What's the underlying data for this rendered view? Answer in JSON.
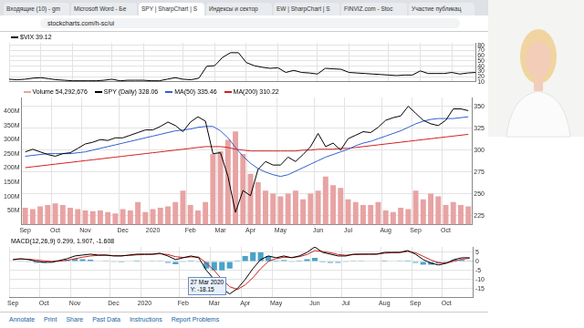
{
  "browser": {
    "tabs": [
      "Входящие (10) - gm",
      "Microsoft Word - Бе",
      "SPY | SharpChart | S",
      "Индексы и сектор",
      "EW | SharpChart | S",
      "FINVIZ.com - Stoc",
      "Участие публикац"
    ],
    "url": "stockcharts.com/h-sc/ui"
  },
  "toolbar": [
    "Annotate",
    "Print",
    "Share",
    "Past Data",
    "Instructions",
    "Report Problems"
  ],
  "chart_data": [
    {
      "type": "line",
      "tick_labels": "y",
      "grid": true,
      "categories": [
        "Sep",
        null,
        null,
        null,
        "Oct",
        null,
        null,
        null,
        "Nov",
        null,
        null,
        null,
        null,
        "Dec",
        null,
        null,
        null,
        "2020",
        null,
        null,
        null,
        null,
        "Feb",
        null,
        null,
        null,
        "Mar",
        null,
        null,
        null,
        "Apr",
        null,
        null,
        null,
        "May",
        null,
        null,
        null,
        null,
        "Jun",
        null,
        null,
        null,
        "Jul",
        null,
        null,
        null,
        null,
        "Aug",
        null,
        null,
        null,
        "Sep",
        null,
        null,
        null,
        "Oct",
        null,
        null,
        null
      ],
      "ylim": [
        10,
        85
      ],
      "yticks": [
        10,
        20,
        30,
        40,
        50,
        60,
        70,
        80
      ],
      "series": [
        {
          "name": "$VIX 39.12",
          "color": "#000000",
          "values": [
            15,
            14,
            15,
            17,
            18,
            16,
            14,
            13,
            12,
            12,
            12,
            12,
            13,
            15,
            12,
            13,
            13,
            13,
            12,
            12,
            15,
            18,
            15,
            14,
            17,
            40,
            41,
            57,
            66,
            66,
            47,
            41,
            38,
            36,
            37,
            28,
            32,
            28,
            27,
            25,
            36,
            35,
            34,
            28,
            27,
            26,
            25,
            24,
            23,
            22,
            23,
            23,
            31,
            26,
            26,
            26,
            28,
            25,
            27,
            28
          ]
        }
      ]
    },
    {
      "type": "line",
      "grid": true,
      "categories": [
        "Sep",
        null,
        null,
        null,
        "Oct",
        null,
        null,
        null,
        "Nov",
        null,
        null,
        null,
        null,
        "Dec",
        null,
        null,
        null,
        "2020",
        null,
        null,
        null,
        null,
        "Feb",
        null,
        null,
        null,
        "Mar",
        null,
        null,
        null,
        "Apr",
        null,
        null,
        null,
        "May",
        null,
        null,
        null,
        null,
        "Jun",
        null,
        null,
        null,
        "Jul",
        null,
        null,
        null,
        null,
        "Aug",
        null,
        null,
        null,
        "Sep",
        null,
        null,
        null,
        "Oct",
        null,
        null,
        null
      ],
      "ylim": [
        215,
        360
      ],
      "yticks": [
        225,
        250,
        275,
        300,
        325,
        350
      ],
      "y2lim": [
        0,
        450
      ],
      "y2ticks": [
        {
          "value": 50,
          "label": "50M"
        },
        {
          "value": 100,
          "label": "100M"
        },
        {
          "value": 150,
          "label": "150M"
        },
        {
          "value": 200,
          "label": "200M"
        },
        {
          "value": 250,
          "label": "250M"
        },
        {
          "value": 300,
          "label": "300M"
        },
        {
          "value": 350,
          "label": "350M"
        },
        {
          "value": 400,
          "label": "400M"
        }
      ],
      "series": [
        {
          "name": "Volume 54,292,676",
          "type": "bar",
          "axis": "y2",
          "color": "#e8a3a3",
          "values": [
            60,
            55,
            65,
            70,
            75,
            70,
            60,
            55,
            50,
            48,
            50,
            45,
            40,
            55,
            50,
            80,
            45,
            55,
            60,
            65,
            80,
            120,
            70,
            50,
            80,
            250,
            260,
            300,
            330,
            250,
            180,
            150,
            120,
            110,
            100,
            110,
            120,
            90,
            110,
            120,
            170,
            140,
            130,
            90,
            80,
            70,
            70,
            80,
            50,
            45,
            60,
            55,
            120,
            90,
            110,
            100,
            70,
            80,
            70,
            65
          ]
        },
        {
          "name": "SPY (Daily) 328.06",
          "color": "#000000",
          "values": [
            298,
            301,
            298,
            295,
            293,
            296,
            297,
            302,
            307,
            309,
            312,
            311,
            314,
            314,
            317,
            320,
            323,
            323,
            327,
            332,
            328,
            321,
            332,
            338,
            333,
            296,
            297,
            270,
            229,
            254,
            248,
            278,
            287,
            283,
            283,
            292,
            287,
            295,
            304,
            319,
            304,
            308,
            300,
            313,
            317,
            321,
            320,
            326,
            334,
            337,
            339,
            350,
            342,
            334,
            330,
            328,
            334,
            347,
            347,
            345
          ]
        },
        {
          "name": "MA(50) 335.46",
          "color": "#2f5fd0",
          "values": [
            293,
            294,
            295,
            296,
            296,
            296,
            296,
            297,
            298,
            300,
            302,
            304,
            306,
            308,
            310,
            312,
            314,
            316,
            318,
            320,
            322,
            323,
            324,
            326,
            327,
            327,
            322,
            314,
            303,
            293,
            285,
            279,
            275,
            272,
            270,
            272,
            276,
            280,
            284,
            288,
            292,
            295,
            298,
            301,
            305,
            308,
            310,
            313,
            316,
            319,
            322,
            326,
            330,
            333,
            335,
            336,
            336,
            336,
            337,
            338
          ]
        },
        {
          "name": "MA(200) 310.22",
          "color": "#d02020",
          "values": [
            280,
            281,
            282,
            283,
            284,
            285,
            286,
            287,
            288,
            289,
            290,
            291,
            292,
            293,
            294,
            295,
            296,
            297,
            298,
            299,
            300,
            301,
            302,
            303,
            304,
            304,
            304,
            303,
            301,
            300,
            299,
            299,
            299,
            299,
            299,
            299,
            299,
            300,
            300,
            301,
            301,
            301,
            302,
            302,
            303,
            304,
            305,
            306,
            307,
            308,
            309,
            310,
            311,
            312,
            313,
            314,
            315,
            316,
            317,
            318
          ]
        }
      ]
    },
    {
      "type": "line",
      "grid": true,
      "title": "MACD(12,26,9) 0.299, 1.907, -1.608",
      "annotations": [
        "27 Mar 2020",
        "Y: -18.15"
      ],
      "categories": [
        "Sep",
        null,
        null,
        null,
        "Oct",
        null,
        null,
        null,
        "Nov",
        null,
        null,
        null,
        null,
        "Dec",
        null,
        null,
        null,
        "2020",
        null,
        null,
        null,
        null,
        "Feb",
        null,
        null,
        null,
        "Mar",
        null,
        null,
        null,
        "Apr",
        null,
        null,
        null,
        "May",
        null,
        null,
        null,
        null,
        "Jun",
        null,
        null,
        null,
        "Jul",
        null,
        null,
        null,
        null,
        "Aug",
        null,
        null,
        null,
        "Sep",
        null,
        null,
        null,
        "Oct",
        null,
        null,
        null
      ],
      "ylim": [
        -20,
        8
      ],
      "yticks": [
        -15,
        -10,
        -5,
        0,
        5
      ],
      "series": [
        {
          "type": "bar",
          "color": "#4aa3c8",
          "values": [
            0,
            0.3,
            -0.2,
            -0.8,
            -0.8,
            -0.5,
            0.4,
            0.9,
            1.5,
            1.2,
            1,
            0.2,
            0.1,
            -0.2,
            -0.1,
            0.2,
            0.4,
            0.2,
            0.1,
            0.3,
            -0.8,
            -1.6,
            -0.2,
            0.5,
            -0.4,
            -4,
            -5,
            -5,
            -4,
            0.5,
            3,
            5,
            5,
            3,
            0.5,
            0.7,
            -0.2,
            0.4,
            1.2,
            2,
            -0.5,
            -0.8,
            -0.8,
            -0.4,
            0.3,
            0.1,
            0,
            0,
            0.5,
            0.2,
            0.1,
            0.5,
            -0.8,
            -1.8,
            -1.8,
            -1.2,
            -0.1,
            0.9,
            0.8,
            0.3
          ]
        },
        {
          "color": "#000000",
          "values": [
            1,
            1.5,
            1,
            0,
            -0.5,
            -0.5,
            0.5,
            1.5,
            3,
            3.5,
            4,
            3.5,
            3.5,
            3,
            3,
            3.5,
            4,
            4,
            4,
            4.5,
            3,
            1,
            2,
            3,
            2,
            -5,
            -10,
            -15,
            -18,
            -15,
            -10,
            -4,
            1,
            3,
            2,
            3,
            2,
            3,
            5,
            8,
            5,
            4,
            3,
            3,
            4,
            4,
            4,
            4,
            5,
            5,
            5,
            6,
            4,
            1,
            -1,
            -2,
            -1,
            1,
            2,
            2
          ]
        },
        {
          "color": "#d02020",
          "values": [
            1,
            1.2,
            1.2,
            0.8,
            0.3,
            0,
            0.1,
            0.6,
            1.5,
            2.3,
            3,
            3.3,
            3.4,
            3.2,
            3.1,
            3.3,
            3.6,
            3.8,
            3.9,
            4.2,
            3.8,
            2.6,
            2.2,
            2.5,
            2.4,
            -1,
            -5,
            -10,
            -14,
            -15.5,
            -13,
            -9,
            -4,
            0,
            1.5,
            2.3,
            2.2,
            2.6,
            3.8,
            6,
            5.5,
            4.8,
            3.8,
            3.4,
            3.7,
            3.9,
            4,
            4,
            4.5,
            4.8,
            4.9,
            5.5,
            4.8,
            2.8,
            0.8,
            -0.8,
            -0.9,
            0.1,
            1.2,
            1.7
          ]
        }
      ]
    }
  ]
}
